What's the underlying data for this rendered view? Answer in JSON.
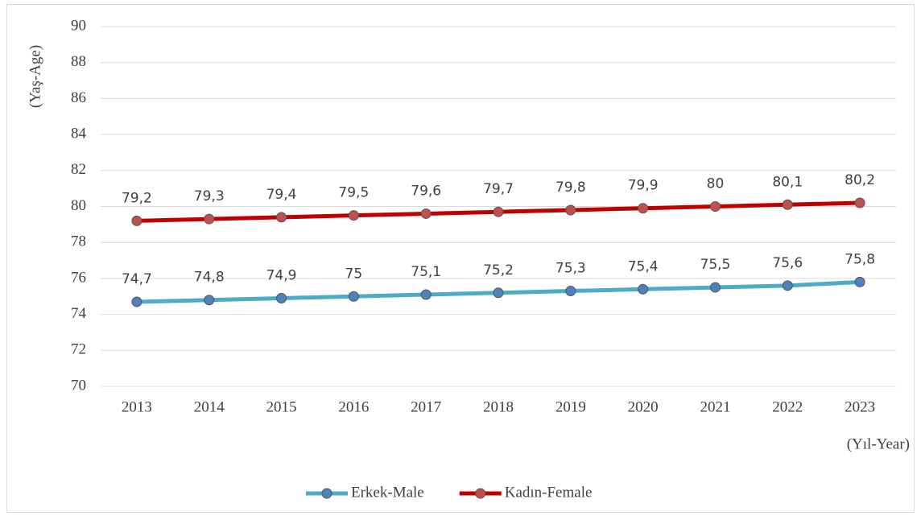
{
  "chart_data": {
    "type": "line",
    "y_label": "(Yaş-Age)",
    "x_label": "(Yıl-Year)",
    "categories": [
      "2013",
      "2014",
      "2015",
      "2016",
      "2017",
      "2018",
      "2019",
      "2020",
      "2021",
      "2022",
      "2023"
    ],
    "series": [
      {
        "name": "Erkek-Male",
        "color": "#4bacc6",
        "marker_color": "#4f81bd",
        "values": [
          74.7,
          74.8,
          74.9,
          75,
          75.1,
          75.2,
          75.3,
          75.4,
          75.5,
          75.6,
          75.8
        ],
        "value_labels": [
          "74,7",
          "74,8",
          "74,9",
          "75",
          "75,1",
          "75,2",
          "75,3",
          "75,4",
          "75,5",
          "75,6",
          "75,8"
        ]
      },
      {
        "name": "Kadın-Female",
        "color": "#c00000",
        "marker_color": "#c0504d",
        "values": [
          79.2,
          79.3,
          79.4,
          79.5,
          79.6,
          79.7,
          79.8,
          79.9,
          80,
          80.1,
          80.2
        ],
        "value_labels": [
          "79,2",
          "79,3",
          "79,4",
          "79,5",
          "79,6",
          "79,7",
          "79,8",
          "79,9",
          "80",
          "80,1",
          "80,2"
        ]
      }
    ],
    "ylim": [
      70,
      90
    ],
    "yticks": [
      70,
      72,
      74,
      76,
      78,
      80,
      82,
      84,
      86,
      88,
      90
    ],
    "grid": true,
    "legend": "bottom"
  }
}
